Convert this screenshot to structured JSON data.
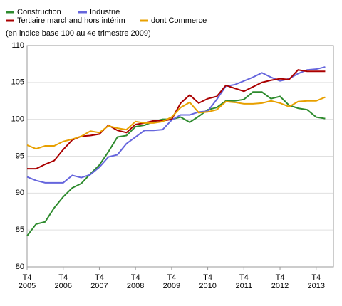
{
  "chart_data": {
    "type": "line",
    "subtitle": "(en indice base 100 au 4e trimestre 2009)",
    "categories": [
      [
        "T4",
        "2005"
      ],
      null,
      null,
      null,
      [
        "T4",
        "2006"
      ],
      null,
      null,
      null,
      [
        "T4",
        "2007"
      ],
      null,
      null,
      null,
      [
        "T4",
        "2008"
      ],
      null,
      null,
      null,
      [
        "T4",
        "2009"
      ],
      null,
      null,
      null,
      [
        "T4",
        "2010"
      ],
      null,
      null,
      null,
      [
        "T4",
        "2011"
      ],
      null,
      null,
      null,
      [
        "T4",
        "2012"
      ],
      null,
      null,
      null,
      [
        "T4",
        "2013"
      ],
      null
    ],
    "series": [
      {
        "name": "Construction",
        "color": "#2e8b2e",
        "values": [
          84.2,
          85.8,
          86.1,
          88,
          89.5,
          90.7,
          91.3,
          92.6,
          93.8,
          95.6,
          97.6,
          97.8,
          99,
          99.2,
          99.7,
          100,
          100,
          100.3,
          99.6,
          100.4,
          101.3,
          101.6,
          102.5,
          102.5,
          102.7,
          103.7,
          103.7,
          102.8,
          103.1,
          101.9,
          101.5,
          101.3,
          100.3,
          100.1
        ]
      },
      {
        "name": "Industrie",
        "color": "#6666dd",
        "values": [
          92.2,
          91.7,
          91.4,
          91.4,
          91.4,
          92.4,
          92.1,
          92.5,
          93.5,
          94.9,
          95.2,
          96.7,
          97.6,
          98.5,
          98.5,
          98.6,
          99.9,
          100.6,
          100.6,
          101,
          101.1,
          102.7,
          104.5,
          104.7,
          105.2,
          105.7,
          106.3,
          105.7,
          105.2,
          105.5,
          106.2,
          106.7,
          106.8,
          107.1
        ]
      },
      {
        "name": "Tertiaire marchand hors intérim",
        "color": "#aa0000",
        "values": [
          93.3,
          93.3,
          93.9,
          94.4,
          95.9,
          97.2,
          97.7,
          97.8,
          98,
          99.2,
          98.5,
          98.2,
          99.3,
          99.5,
          99.8,
          99.8,
          100,
          102.2,
          103.3,
          102.2,
          102.8,
          103.1,
          104.6,
          104.2,
          103.8,
          104.4,
          105,
          105.3,
          105.5,
          105.4,
          106.7,
          106.5,
          106.5,
          106.5
        ]
      },
      {
        "name": "dont Commerce",
        "color": "#e8a000",
        "values": [
          96.5,
          96,
          96.4,
          96.4,
          97,
          97.3,
          97.7,
          98.4,
          98.2,
          99.1,
          98.8,
          98.6,
          99.7,
          99.5,
          99.5,
          99.7,
          100.3,
          101.6,
          102.3,
          100.9,
          101,
          101.3,
          102.4,
          102.3,
          102.1,
          102.1,
          102.2,
          102.5,
          102.2,
          101.7,
          102.4,
          102.5,
          102.5,
          103
        ]
      }
    ],
    "ylim": [
      80,
      110
    ],
    "yticks": [
      80,
      85,
      90,
      95,
      100,
      105,
      110
    ],
    "grid": true
  }
}
